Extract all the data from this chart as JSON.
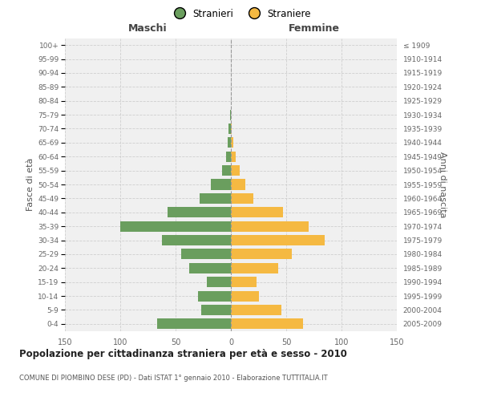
{
  "age_groups": [
    "100+",
    "95-99",
    "90-94",
    "85-89",
    "80-84",
    "75-79",
    "70-74",
    "65-69",
    "60-64",
    "55-59",
    "50-54",
    "45-49",
    "40-44",
    "35-39",
    "30-34",
    "25-29",
    "20-24",
    "15-19",
    "10-14",
    "5-9",
    "0-4"
  ],
  "birth_years": [
    "≤ 1909",
    "1910-1914",
    "1915-1919",
    "1920-1924",
    "1925-1929",
    "1930-1934",
    "1935-1939",
    "1940-1944",
    "1945-1949",
    "1950-1954",
    "1955-1959",
    "1960-1964",
    "1965-1969",
    "1970-1974",
    "1975-1979",
    "1980-1984",
    "1985-1989",
    "1990-1994",
    "1995-1999",
    "2000-2004",
    "2005-2009"
  ],
  "maschi": [
    0,
    0,
    0,
    0,
    0,
    1,
    2,
    3,
    4,
    8,
    18,
    28,
    57,
    100,
    62,
    45,
    38,
    22,
    30,
    27,
    67
  ],
  "femmine": [
    0,
    0,
    0,
    0,
    0,
    0,
    1,
    2,
    4,
    8,
    13,
    20,
    47,
    70,
    85,
    55,
    43,
    23,
    25,
    46,
    65
  ],
  "color_maschi": "#6a9e5e",
  "color_femmine": "#f5b942",
  "bg_color": "#f0f0f0",
  "title": "Popolazione per cittadinanza straniera per età e sesso - 2010",
  "subtitle": "COMUNE DI PIOMBINO DESE (PD) - Dati ISTAT 1° gennaio 2010 - Elaborazione TUTTITALIA.IT",
  "xlabel_left": "Maschi",
  "xlabel_right": "Femmine",
  "ylabel_left": "Fasce di età",
  "ylabel_right": "Anni di nascita",
  "legend_maschi": "Stranieri",
  "legend_femmine": "Straniere",
  "xlim": 150,
  "grid_color": "#cccccc"
}
